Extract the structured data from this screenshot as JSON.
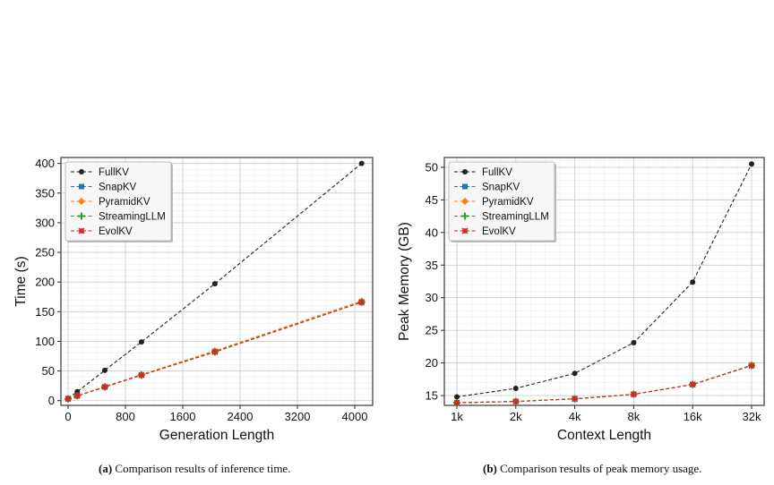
{
  "colors": {
    "FullKV": "#222222",
    "SnapKV": "#1f77b4",
    "PyramidKV": "#ff7f0e",
    "StreamingLLM": "#2ca02c",
    "EvolKV": "#d62728"
  },
  "chart_data": [
    {
      "type": "line",
      "xlabel": "Generation Length",
      "ylabel": "Time (s)",
      "xlim": [
        -100,
        4250
      ],
      "ylim": [
        -8,
        410
      ],
      "xticks": [
        0,
        800,
        1600,
        2400,
        3200,
        4000
      ],
      "yticks": [
        0,
        50,
        100,
        150,
        200,
        250,
        300,
        350,
        400
      ],
      "legend_position": "upper-left",
      "grid": true,
      "series": [
        {
          "name": "FullKV",
          "marker": "circle",
          "x": [
            0,
            128,
            512,
            1024,
            2048,
            4096
          ],
          "y": [
            4,
            15,
            51,
            99,
            197,
            400
          ]
        },
        {
          "name": "SnapKV",
          "marker": "square",
          "x": [
            0,
            128,
            512,
            1024,
            2048,
            4096
          ],
          "y": [
            3,
            8,
            23,
            43,
            83,
            166
          ]
        },
        {
          "name": "PyramidKV",
          "marker": "diamond",
          "x": [
            0,
            128,
            512,
            1024,
            2048,
            4096
          ],
          "y": [
            3,
            8,
            24,
            44,
            84,
            168
          ]
        },
        {
          "name": "StreamingLLM",
          "marker": "plus",
          "x": [
            0,
            128,
            512,
            1024,
            2048,
            4096
          ],
          "y": [
            3,
            8,
            23,
            43,
            82,
            166
          ]
        },
        {
          "name": "EvolKV",
          "marker": "x",
          "x": [
            0,
            128,
            512,
            1024,
            2048,
            4096
          ],
          "y": [
            3,
            8,
            23,
            43,
            82,
            166
          ]
        }
      ]
    },
    {
      "type": "line",
      "xlabel": "Context Length",
      "ylabel": "Peak Memory (GB)",
      "xscale": "log2",
      "categories": [
        "1k",
        "2k",
        "4k",
        "8k",
        "16k",
        "32k"
      ],
      "ylim": [
        13.5,
        51.5
      ],
      "yticks": [
        15,
        20,
        25,
        30,
        35,
        40,
        45,
        50
      ],
      "legend_position": "upper-left",
      "grid": true,
      "series": [
        {
          "name": "FullKV",
          "marker": "circle",
          "values": [
            14.8,
            16.1,
            18.4,
            23.1,
            32.4,
            50.5
          ]
        },
        {
          "name": "SnapKV",
          "marker": "square",
          "values": [
            13.9,
            14.1,
            14.5,
            15.2,
            16.7,
            19.6
          ]
        },
        {
          "name": "PyramidKV",
          "marker": "diamond",
          "values": [
            13.9,
            14.1,
            14.5,
            15.2,
            16.7,
            19.7
          ]
        },
        {
          "name": "StreamingLLM",
          "marker": "plus",
          "values": [
            13.9,
            14.1,
            14.5,
            15.2,
            16.7,
            19.6
          ]
        },
        {
          "name": "EvolKV",
          "marker": "x",
          "values": [
            13.9,
            14.1,
            14.5,
            15.2,
            16.7,
            19.6
          ]
        }
      ]
    }
  ],
  "captions": [
    {
      "label": "(a)",
      "text": " Comparison results of inference time."
    },
    {
      "label": "(b)",
      "text": " Comparison results of peak memory usage."
    }
  ]
}
